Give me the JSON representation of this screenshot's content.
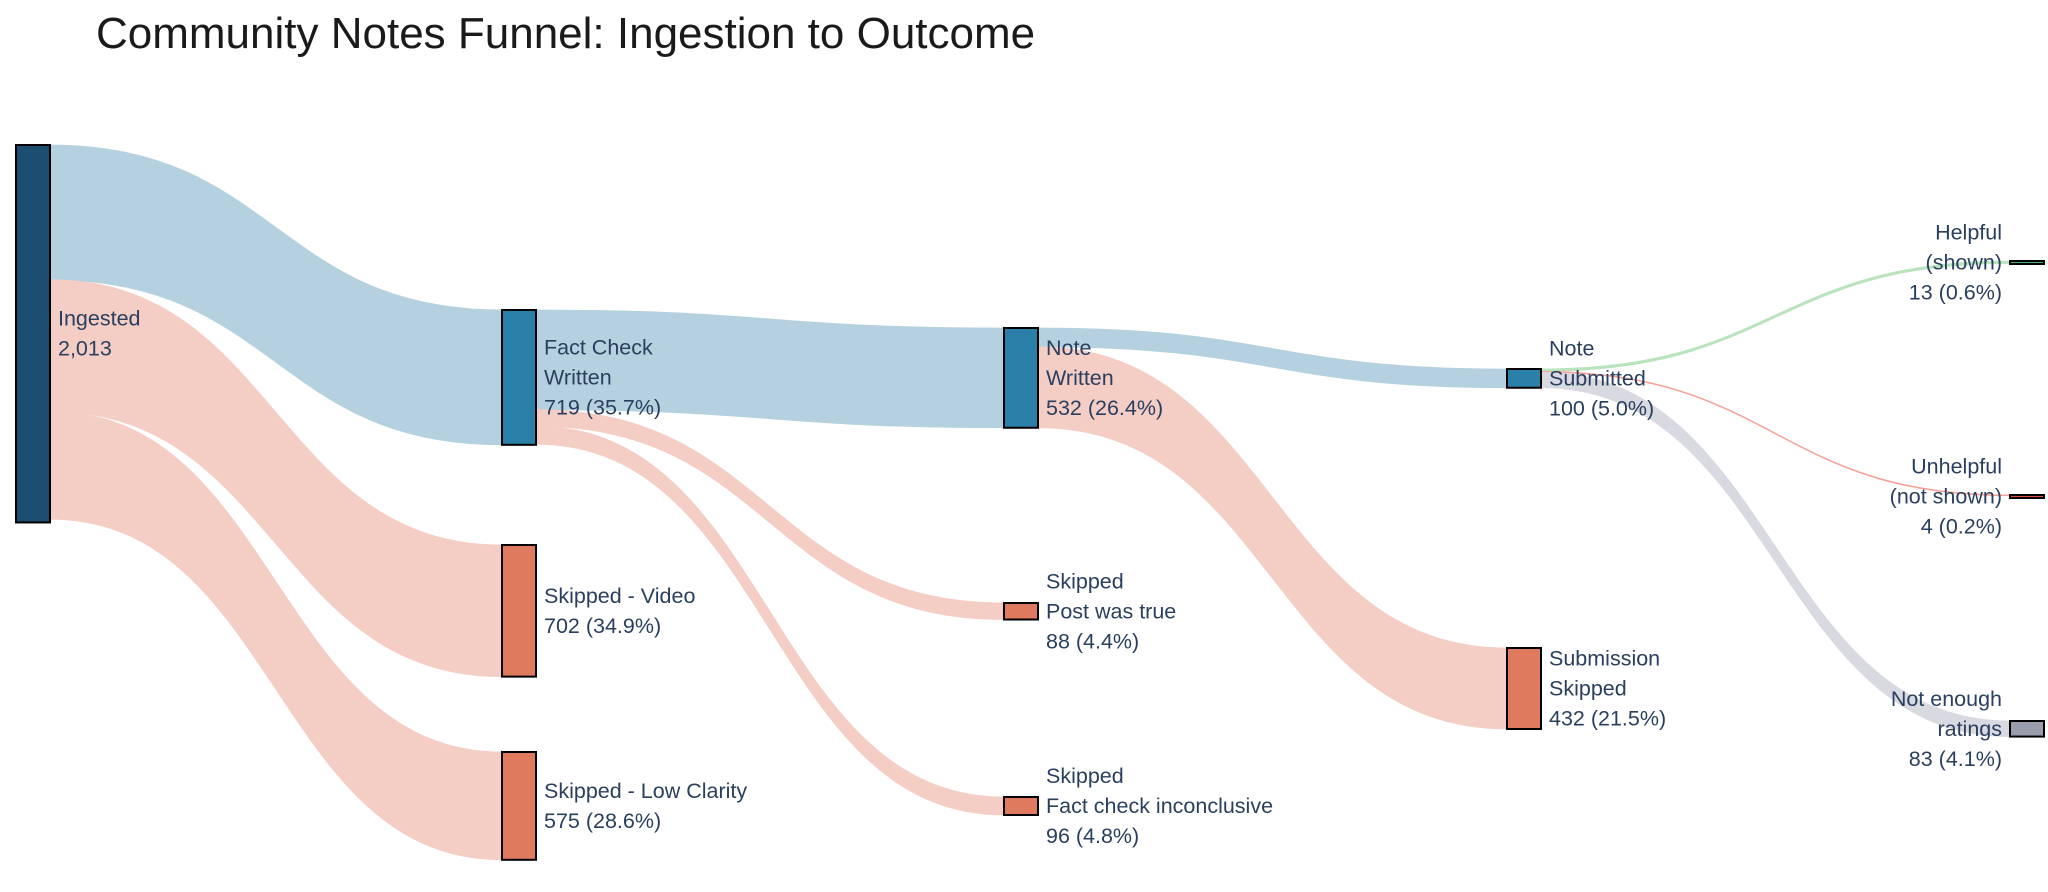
{
  "chart_data": {
    "type": "sankey",
    "title": "Community Notes Funnel: Ingestion to Outcome",
    "nodes": [
      {
        "id": "ingested",
        "lines": [
          "Ingested",
          "2,013"
        ],
        "value": 2013,
        "color": "#1c4e72"
      },
      {
        "id": "fact_check",
        "lines": [
          "Fact Check",
          "Written",
          "719 (35.7%)"
        ],
        "value": 719,
        "color": "#2a80a8"
      },
      {
        "id": "skip_video",
        "lines": [
          "Skipped - Video",
          "702 (34.9%)"
        ],
        "value": 702,
        "color": "#e07a5f"
      },
      {
        "id": "skip_clarity",
        "lines": [
          "Skipped - Low Clarity",
          "575 (28.6%)"
        ],
        "value": 575,
        "color": "#e07a5f"
      },
      {
        "id": "note_written",
        "lines": [
          "Note",
          "Written",
          "532 (26.4%)"
        ],
        "value": 532,
        "color": "#2a80a8"
      },
      {
        "id": "skip_true",
        "lines": [
          "Skipped",
          "Post was true",
          "88 (4.4%)"
        ],
        "value": 88,
        "color": "#e07a5f"
      },
      {
        "id": "skip_inconclusive",
        "lines": [
          "Skipped",
          "Fact check inconclusive",
          "96 (4.8%)"
        ],
        "value": 96,
        "color": "#e07a5f"
      },
      {
        "id": "note_submitted",
        "lines": [
          "Note",
          "Submitted",
          "100 (5.0%)"
        ],
        "value": 100,
        "color": "#2a80a8"
      },
      {
        "id": "sub_skipped",
        "lines": [
          "Submission",
          "Skipped",
          "432 (21.5%)"
        ],
        "value": 432,
        "color": "#e07a5f"
      },
      {
        "id": "helpful",
        "lines": [
          "Helpful",
          "(shown)",
          "13 (0.6%)"
        ],
        "value": 13,
        "color": "#3cb371"
      },
      {
        "id": "unhelpful",
        "lines": [
          "Unhelpful",
          "(not shown)",
          "4 (0.2%)"
        ],
        "value": 4,
        "color": "#e74c3c"
      },
      {
        "id": "not_enough",
        "lines": [
          "Not enough",
          "ratings",
          "83 (4.1%)"
        ],
        "value": 83,
        "color": "#9a9eac"
      }
    ],
    "links": [
      {
        "source": "ingested",
        "target": "fact_check",
        "value": 719,
        "color": "#b5d1df"
      },
      {
        "source": "ingested",
        "target": "skip_video",
        "value": 702,
        "color": "#f4cdc4"
      },
      {
        "source": "ingested",
        "target": "skip_clarity",
        "value": 575,
        "color": "#f4cdc4"
      },
      {
        "source": "fact_check",
        "target": "note_written",
        "value": 532,
        "color": "#b5d1df"
      },
      {
        "source": "fact_check",
        "target": "skip_true",
        "value": 88,
        "color": "#f4cdc4"
      },
      {
        "source": "fact_check",
        "target": "skip_inconclusive",
        "value": 96,
        "color": "#f4cdc4"
      },
      {
        "source": "note_written",
        "target": "note_submitted",
        "value": 100,
        "color": "#b5d1df"
      },
      {
        "source": "note_written",
        "target": "sub_skipped",
        "value": 432,
        "color": "#f4cdc4"
      },
      {
        "source": "note_submitted",
        "target": "helpful",
        "value": 13,
        "color": "#b9e3bd"
      },
      {
        "source": "note_submitted",
        "target": "unhelpful",
        "value": 4,
        "color": "#f5a196"
      },
      {
        "source": "note_submitted",
        "target": "not_enough",
        "value": 83,
        "color": "#d8d9e1"
      }
    ]
  }
}
